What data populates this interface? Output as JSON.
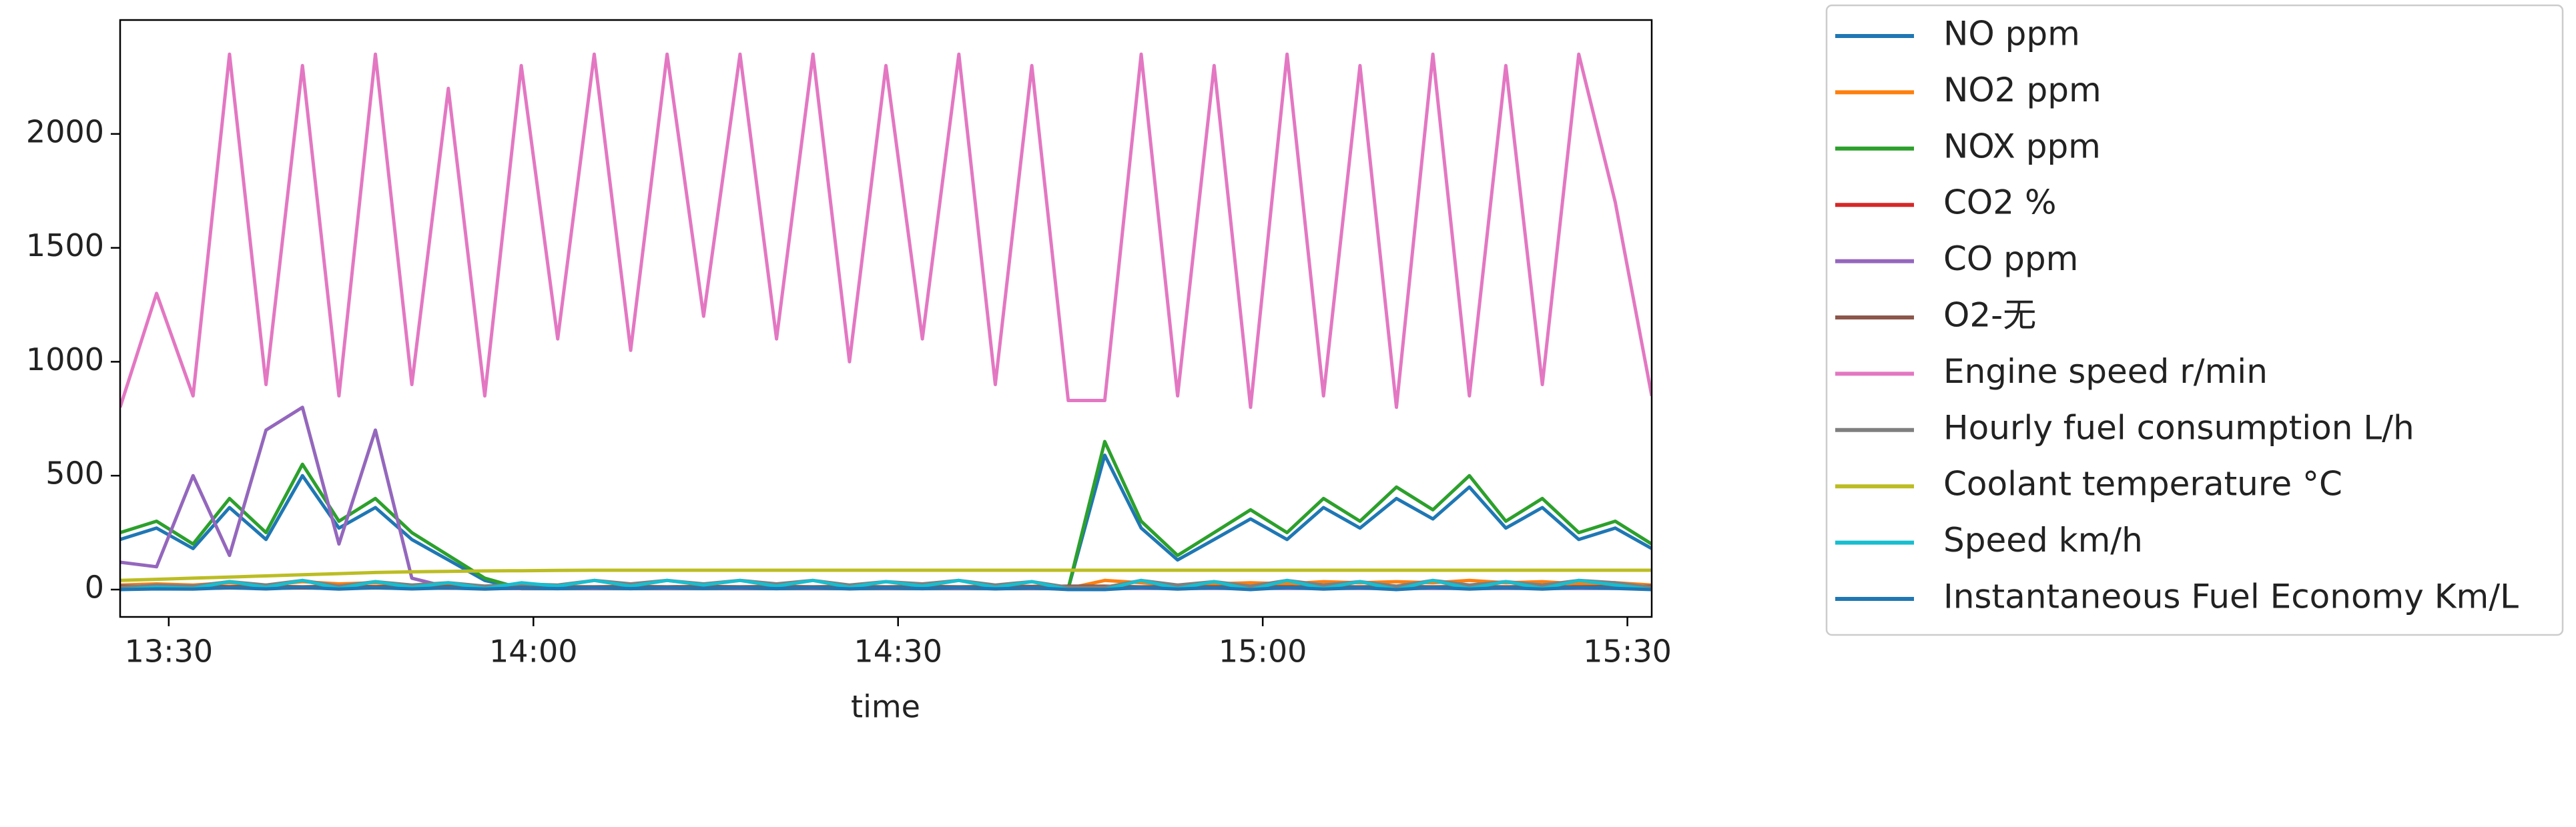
{
  "chart_data": {
    "type": "line",
    "xlabel": "time",
    "x": [
      "13:26",
      "13:29",
      "13:32",
      "13:35",
      "13:38",
      "13:41",
      "13:44",
      "13:47",
      "13:50",
      "13:53",
      "13:56",
      "13:59",
      "14:02",
      "14:05",
      "14:08",
      "14:11",
      "14:14",
      "14:17",
      "14:20",
      "14:23",
      "14:26",
      "14:29",
      "14:32",
      "14:35",
      "14:38",
      "14:41",
      "14:44",
      "14:47",
      "14:50",
      "14:53",
      "14:56",
      "14:59",
      "15:02",
      "15:05",
      "15:08",
      "15:11",
      "15:14",
      "15:17",
      "15:20",
      "15:23",
      "15:26",
      "15:29",
      "15:32"
    ],
    "xlim": [
      "13:26",
      "15:32"
    ],
    "xticks": [
      "13:30",
      "14:00",
      "14:30",
      "15:00",
      "15:30"
    ],
    "ylim": [
      -120,
      2500
    ],
    "yticks": [
      0,
      500,
      1000,
      1500,
      2000
    ],
    "grid": false,
    "legend": "outside",
    "series": [
      {
        "name": "NO ppm",
        "color": "#1f77b4",
        "values": [
          220,
          270,
          180,
          360,
          220,
          500,
          270,
          360,
          220,
          130,
          40,
          4,
          4,
          4,
          4,
          4,
          4,
          4,
          4,
          4,
          4,
          4,
          4,
          4,
          4,
          4,
          4,
          590,
          270,
          130,
          220,
          310,
          220,
          360,
          270,
          400,
          310,
          450,
          270,
          360,
          220,
          270,
          180
        ]
      },
      {
        "name": "NO2 ppm",
        "color": "#ff7f0e",
        "values": [
          20,
          25,
          20,
          30,
          20,
          35,
          25,
          30,
          20,
          15,
          8,
          5,
          5,
          5,
          5,
          5,
          5,
          5,
          5,
          5,
          5,
          5,
          5,
          5,
          5,
          5,
          5,
          40,
          30,
          20,
          25,
          30,
          25,
          35,
          30,
          35,
          30,
          40,
          30,
          35,
          25,
          30,
          20
        ]
      },
      {
        "name": "NOX ppm",
        "color": "#2ca02c",
        "values": [
          250,
          300,
          200,
          400,
          250,
          550,
          300,
          400,
          250,
          150,
          50,
          5,
          5,
          5,
          5,
          5,
          5,
          5,
          5,
          5,
          5,
          5,
          5,
          5,
          5,
          5,
          5,
          650,
          300,
          150,
          250,
          350,
          250,
          400,
          300,
          450,
          350,
          500,
          300,
          400,
          250,
          300,
          200
        ]
      },
      {
        "name": "CO2 %",
        "color": "#d62728",
        "values": [
          5,
          6,
          5,
          7,
          6,
          7,
          6,
          7,
          6,
          6,
          5,
          5,
          6,
          7,
          6,
          7,
          6,
          7,
          6,
          7,
          6,
          7,
          6,
          7,
          6,
          6,
          5,
          5,
          7,
          6,
          7,
          6,
          7,
          6,
          7,
          6,
          7,
          6,
          7,
          6,
          7,
          6,
          5
        ]
      },
      {
        "name": "CO ppm",
        "color": "#9467bd",
        "values": [
          120,
          100,
          500,
          150,
          700,
          800,
          200,
          700,
          50,
          10,
          5,
          5,
          5,
          5,
          5,
          5,
          5,
          5,
          5,
          5,
          5,
          5,
          5,
          5,
          5,
          5,
          5,
          5,
          5,
          5,
          5,
          5,
          5,
          5,
          5,
          5,
          5,
          5,
          5,
          5,
          5,
          5,
          5
        ]
      },
      {
        "name": "O2-无",
        "color": "#8c564b",
        "values": [
          15,
          14,
          15,
          13,
          15,
          12,
          15,
          13,
          15,
          14,
          15,
          14,
          13,
          12,
          14,
          12,
          14,
          12,
          14,
          12,
          14,
          12,
          14,
          12,
          14,
          14,
          15,
          15,
          12,
          14,
          12,
          14,
          12,
          14,
          12,
          14,
          12,
          14,
          12,
          14,
          12,
          14,
          15
        ]
      },
      {
        "name": "Engine speed r/min",
        "color": "#e377c2",
        "values": [
          800,
          1300,
          850,
          2350,
          900,
          2300,
          850,
          2350,
          900,
          2200,
          850,
          2300,
          1100,
          2350,
          1050,
          2350,
          1200,
          2350,
          1100,
          2350,
          1000,
          2300,
          1100,
          2350,
          900,
          2300,
          830,
          830,
          2350,
          850,
          2300,
          800,
          2350,
          850,
          2300,
          800,
          2350,
          850,
          2300,
          900,
          2350,
          1700,
          850
        ]
      },
      {
        "name": "Hourly fuel consumption L/h",
        "color": "#7f7f7f",
        "values": [
          10,
          20,
          15,
          35,
          20,
          40,
          15,
          35,
          20,
          30,
          15,
          25,
          20,
          40,
          25,
          40,
          25,
          40,
          25,
          40,
          20,
          35,
          25,
          40,
          20,
          35,
          10,
          10,
          40,
          20,
          35,
          15,
          40,
          20,
          35,
          15,
          40,
          20,
          35,
          20,
          40,
          30,
          10
        ]
      },
      {
        "name": "Coolant temperature °C",
        "color": "#bcbd22",
        "values": [
          40,
          45,
          50,
          55,
          60,
          65,
          70,
          75,
          78,
          80,
          82,
          83,
          84,
          85,
          85,
          85,
          85,
          85,
          85,
          85,
          85,
          85,
          85,
          85,
          85,
          85,
          85,
          85,
          85,
          85,
          85,
          85,
          85,
          85,
          85,
          85,
          85,
          85,
          85,
          85,
          85,
          85,
          85
        ]
      },
      {
        "name": "Speed km/h",
        "color": "#17becf",
        "values": [
          0,
          10,
          5,
          35,
          10,
          40,
          5,
          35,
          10,
          30,
          5,
          30,
          15,
          40,
          15,
          40,
          20,
          40,
          15,
          40,
          10,
          35,
          15,
          40,
          10,
          35,
          0,
          0,
          40,
          5,
          35,
          0,
          40,
          5,
          35,
          0,
          40,
          5,
          35,
          5,
          40,
          20,
          0
        ]
      },
      {
        "name": "Instantaneous Fuel Economy Km/L",
        "color": "#1f77b4",
        "values": [
          0,
          3,
          2,
          8,
          3,
          9,
          2,
          8,
          3,
          7,
          2,
          7,
          4,
          9,
          4,
          9,
          5,
          9,
          4,
          9,
          3,
          8,
          4,
          9,
          3,
          8,
          0,
          0,
          9,
          2,
          8,
          0,
          9,
          2,
          8,
          0,
          9,
          2,
          8,
          2,
          9,
          5,
          0
        ]
      }
    ]
  }
}
